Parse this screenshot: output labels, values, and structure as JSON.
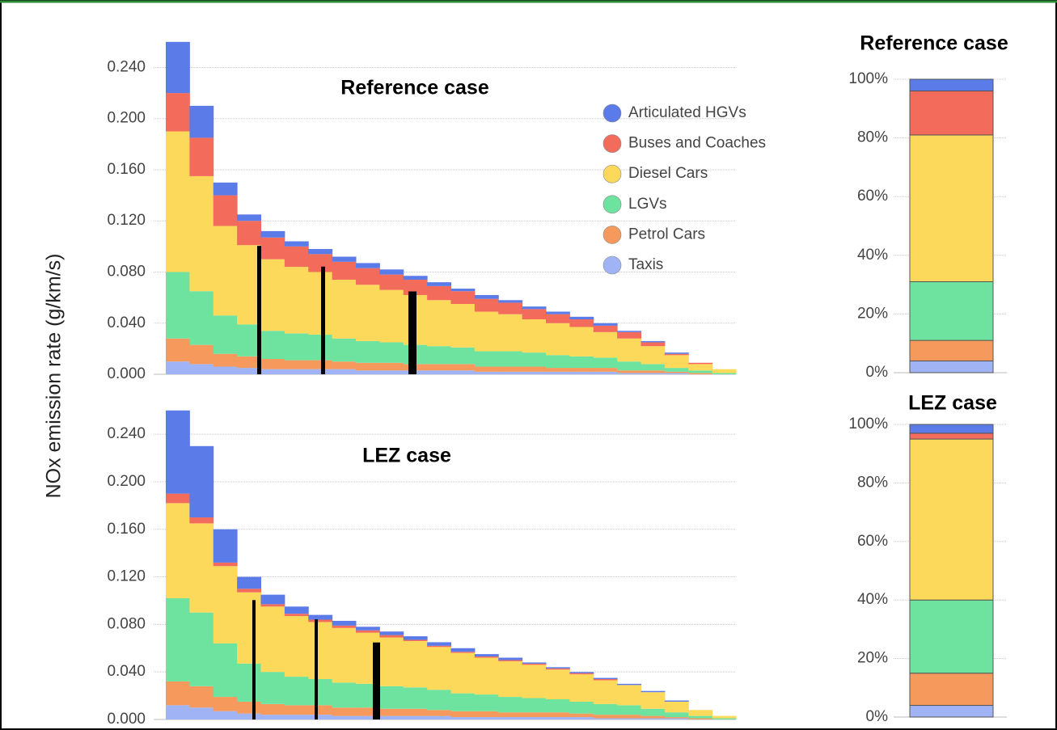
{
  "ylabel": "NOx emission rate (g/km/s)",
  "chart_data": [
    {
      "type": "stacked_bar",
      "title": "Reference case",
      "legend": "upper right",
      "grid": true,
      "ylim": [
        0,
        0.27
      ],
      "yticks": [
        {
          "value": 0,
          "label": "0.000"
        },
        {
          "value": 0.04,
          "label": "0.040"
        },
        {
          "value": 0.08,
          "label": "0.080"
        },
        {
          "value": 0.12,
          "label": "0.120"
        },
        {
          "value": 0.16,
          "label": "0.160"
        },
        {
          "value": 0.2,
          "label": "0.200"
        },
        {
          "value": 0.24,
          "label": "0.240"
        }
      ],
      "series": [
        {
          "name": "Articulated HGVs",
          "color": "#5b7be8",
          "values": [
            0.04,
            0.025,
            0.01,
            0.005,
            0.005,
            0.004,
            0.004,
            0.004,
            0.004,
            0.004,
            0.003,
            0.003,
            0.002,
            0.003,
            0.002,
            0.002,
            0.002,
            0.002,
            0.002,
            0.001,
            0.001,
            0.001,
            0,
            0
          ]
        },
        {
          "name": "Buses and Coaches",
          "color": "#f26b5b",
          "values": [
            0.03,
            0.03,
            0.024,
            0.019,
            0.017,
            0.016,
            0.014,
            0.014,
            0.013,
            0.012,
            0.012,
            0.011,
            0.01,
            0.01,
            0.009,
            0.008,
            0.007,
            0.006,
            0.005,
            0.005,
            0.003,
            0.001,
            0.001,
            0
          ]
        },
        {
          "name": "Diesel Cars",
          "color": "#fcd95a",
          "values": [
            0.11,
            0.09,
            0.07,
            0.062,
            0.056,
            0.052,
            0.049,
            0.046,
            0.044,
            0.041,
            0.039,
            0.036,
            0.034,
            0.031,
            0.029,
            0.026,
            0.025,
            0.023,
            0.02,
            0.018,
            0.014,
            0.01,
            0.005,
            0.003
          ]
        },
        {
          "name": "LGVs",
          "color": "#6ee3a0",
          "values": [
            0.052,
            0.042,
            0.03,
            0.025,
            0.022,
            0.021,
            0.02,
            0.018,
            0.017,
            0.016,
            0.015,
            0.014,
            0.013,
            0.012,
            0.012,
            0.011,
            0.01,
            0.009,
            0.008,
            0.007,
            0.005,
            0.003,
            0.002,
            0.001
          ]
        },
        {
          "name": "Petrol Cars",
          "color": "#f59a5c",
          "values": [
            0.018,
            0.015,
            0.01,
            0.009,
            0.008,
            0.007,
            0.007,
            0.006,
            0.006,
            0.006,
            0.005,
            0.005,
            0.005,
            0.004,
            0.004,
            0.004,
            0.003,
            0.003,
            0.003,
            0.002,
            0.002,
            0.001,
            0.001,
            0
          ]
        },
        {
          "name": "Taxis",
          "color": "#9fb3f5",
          "values": [
            0.01,
            0.008,
            0.006,
            0.005,
            0.004,
            0.004,
            0.004,
            0.004,
            0.003,
            0.003,
            0.003,
            0.003,
            0.003,
            0.002,
            0.002,
            0.002,
            0.002,
            0.002,
            0.002,
            0.001,
            0.001,
            0.001,
            0,
            0
          ]
        }
      ]
    },
    {
      "type": "stacked_bar",
      "title": "LEZ case",
      "grid": true,
      "ylim": [
        0,
        0.27
      ],
      "yticks": [
        {
          "value": 0,
          "label": "0.000"
        },
        {
          "value": 0.04,
          "label": "0.040"
        },
        {
          "value": 0.08,
          "label": "0.080"
        },
        {
          "value": 0.12,
          "label": "0.120"
        },
        {
          "value": 0.16,
          "label": "0.160"
        },
        {
          "value": 0.2,
          "label": "0.200"
        },
        {
          "value": 0.24,
          "label": "0.240"
        }
      ],
      "series": [
        {
          "values": [
            0.07,
            0.06,
            0.028,
            0.01,
            0.008,
            0.006,
            0.004,
            0.004,
            0.003,
            0.003,
            0.003,
            0.003,
            0.003,
            0.002,
            0.002,
            0.001,
            0.001,
            0.001,
            0.001,
            0.001,
            0.001,
            0.001,
            0,
            0
          ]
        },
        {
          "values": [
            0.008,
            0.005,
            0.003,
            0.003,
            0.002,
            0.002,
            0.002,
            0.002,
            0.002,
            0.002,
            0.001,
            0.001,
            0.001,
            0.001,
            0.001,
            0.001,
            0.001,
            0.001,
            0.001,
            0,
            0,
            0,
            0,
            0
          ]
        },
        {
          "values": [
            0.08,
            0.075,
            0.065,
            0.06,
            0.055,
            0.051,
            0.048,
            0.046,
            0.043,
            0.041,
            0.039,
            0.036,
            0.034,
            0.031,
            0.03,
            0.028,
            0.025,
            0.023,
            0.02,
            0.017,
            0.014,
            0.009,
            0.005,
            0.002
          ]
        },
        {
          "values": [
            0.07,
            0.062,
            0.045,
            0.032,
            0.027,
            0.024,
            0.022,
            0.021,
            0.02,
            0.019,
            0.018,
            0.017,
            0.015,
            0.014,
            0.013,
            0.012,
            0.011,
            0.01,
            0.009,
            0.008,
            0.006,
            0.004,
            0.002,
            0.001
          ]
        },
        {
          "values": [
            0.02,
            0.018,
            0.012,
            0.01,
            0.009,
            0.008,
            0.008,
            0.007,
            0.007,
            0.006,
            0.006,
            0.005,
            0.005,
            0.005,
            0.004,
            0.004,
            0.004,
            0.003,
            0.003,
            0.003,
            0.002,
            0.001,
            0.001,
            0
          ]
        },
        {
          "values": [
            0.012,
            0.01,
            0.007,
            0.005,
            0.004,
            0.004,
            0.004,
            0.003,
            0.003,
            0.003,
            0.003,
            0.003,
            0.002,
            0.002,
            0.002,
            0.002,
            0.002,
            0.002,
            0.001,
            0.001,
            0.001,
            0.001,
            0,
            0
          ]
        }
      ]
    },
    {
      "type": "share_bar",
      "title": "Reference case",
      "grid": true,
      "ylim": [
        0,
        100
      ],
      "yticks": [
        {
          "value": 0,
          "label": "0%"
        },
        {
          "value": 20,
          "label": "20%"
        },
        {
          "value": 40,
          "label": "40%"
        },
        {
          "value": 60,
          "label": "60%"
        },
        {
          "value": 80,
          "label": "80%"
        },
        {
          "value": 100,
          "label": "100%"
        }
      ],
      "series": [
        {
          "values": [
            4
          ]
        },
        {
          "values": [
            15
          ]
        },
        {
          "values": [
            50
          ]
        },
        {
          "values": [
            20
          ]
        },
        {
          "values": [
            7
          ]
        },
        {
          "values": [
            4
          ]
        }
      ]
    },
    {
      "type": "share_bar",
      "title": "LEZ case",
      "grid": true,
      "ylim": [
        0,
        100
      ],
      "yticks": [
        {
          "value": 0,
          "label": "0%"
        },
        {
          "value": 20,
          "label": "20%"
        },
        {
          "value": 40,
          "label": "40%"
        },
        {
          "value": 60,
          "label": "60%"
        },
        {
          "value": 80,
          "label": "80%"
        },
        {
          "value": 100,
          "label": "100%"
        }
      ],
      "series": [
        {
          "values": [
            3
          ]
        },
        {
          "values": [
            2
          ]
        },
        {
          "values": [
            55
          ]
        },
        {
          "values": [
            25
          ]
        },
        {
          "values": [
            11
          ]
        },
        {
          "values": [
            4
          ]
        }
      ]
    }
  ]
}
